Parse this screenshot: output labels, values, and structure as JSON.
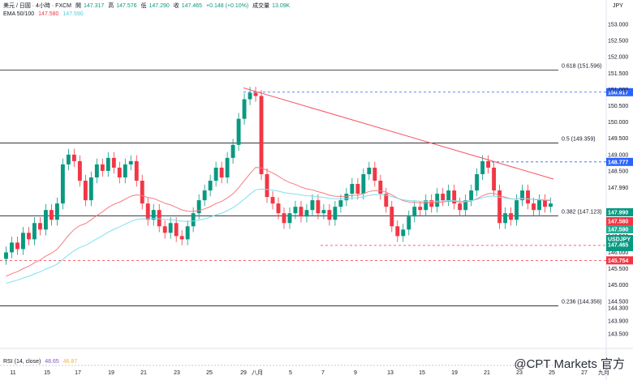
{
  "header": {
    "symbol": "美元 / 日圓 · 4小時 · FXCM",
    "open_label": "開",
    "open": "147.317",
    "high_label": "高",
    "high": "147.576",
    "low_label": "低",
    "low": "147.290",
    "close_label": "收",
    "close": "147.465",
    "change": "+0.148 (+0.10%)",
    "volume_label": "成交量",
    "volume": "13.09K",
    "ema_label": "EMA 50/100",
    "ema50": "147.580",
    "ema100": "147.590"
  },
  "currency": "JPY",
  "rsi": {
    "label": "RSI (14, close)",
    "value1": "48.65",
    "value2": "46.87"
  },
  "watermark": "@CPT Markets 官方",
  "colors": {
    "up": "#089981",
    "down": "#f23645",
    "ema50": "#f77c80",
    "ema100": "#7fe0f0",
    "trendline": "#f7525f",
    "blue_level": "#2962ff",
    "red_level": "#f23645",
    "fib": "#131722"
  },
  "chart_data": {
    "type": "candlestick",
    "title": "美元 / 日圓 · 4小時 · FXCM",
    "price_axis": [
      "153.000",
      "152.500",
      "152.000",
      "151.500",
      "151.000",
      "150.500",
      "150.000",
      "149.500",
      "149.000",
      "148.500",
      "147.990",
      "147.000",
      "146.500",
      "146.000",
      "145.500",
      "145.000",
      "144.500",
      "144.300",
      "143.900",
      "143.500"
    ],
    "date_axis": [
      "11",
      "15",
      "17",
      "19",
      "21",
      "23",
      "25",
      "29",
      "八月",
      "5",
      "7",
      "9",
      "13",
      "15",
      "19",
      "21",
      "23",
      "25",
      "27",
      "九月"
    ],
    "fib_levels": [
      {
        "label": "0.618 (151.596)",
        "price": 151.596
      },
      {
        "label": "0.5 (149.359)",
        "price": 149.359
      },
      {
        "label": "0.382 (147.123)",
        "price": 147.123
      },
      {
        "label": "0.236 (144.356)",
        "price": 144.356
      }
    ],
    "blue_levels": [
      {
        "label": "150.917",
        "price": 150.917
      },
      {
        "label": "148.777",
        "price": 148.777
      }
    ],
    "red_levels": [
      {
        "label": "146.214",
        "price": 146.214
      },
      {
        "label": "145.754",
        "price": 145.754
      }
    ],
    "price_tags": [
      {
        "label": "147.990",
        "price": 147.99,
        "color": "#089981"
      },
      {
        "label": "147.580",
        "price": 147.58,
        "color": "#f23645"
      },
      {
        "label": "147.590",
        "price": 147.59,
        "color": "#22ab94"
      },
      {
        "label": "USDJPY",
        "sub": "147.465",
        "sub2": "33:59",
        "price": 147.465,
        "color": "#089981"
      }
    ],
    "candles": [
      146.0,
      146.3,
      146.1,
      146.6,
      146.4,
      146.9,
      146.7,
      147.3,
      147.0,
      147.5,
      148.7,
      149.0,
      148.8,
      148.2,
      147.6,
      148.3,
      148.7,
      148.5,
      148.9,
      148.6,
      148.3,
      148.7,
      148.8,
      148.2,
      147.5,
      147.0,
      147.3,
      146.8,
      146.6,
      146.9,
      146.5,
      146.4,
      146.8,
      147.2,
      147.6,
      147.9,
      148.2,
      148.6,
      148.3,
      148.9,
      149.3,
      150.1,
      150.7,
      150.9,
      150.8,
      148.4,
      147.7,
      147.5,
      147.2,
      146.9,
      147.2,
      147.4,
      147.1,
      147.3,
      147.6,
      147.2,
      147.3,
      147.0,
      147.4,
      147.6,
      147.8,
      148.1,
      147.8,
      148.4,
      148.6,
      148.2,
      147.8,
      147.4,
      146.8,
      146.5,
      146.7,
      147.1,
      147.4,
      147.3,
      147.6,
      147.4,
      147.8,
      147.6,
      147.9,
      147.5,
      147.3,
      147.6,
      147.9,
      148.4,
      148.8,
      148.6,
      147.9,
      146.9,
      147.2,
      147.0,
      147.6,
      147.9,
      147.5,
      147.3,
      147.6,
      147.4,
      147.5
    ]
  }
}
